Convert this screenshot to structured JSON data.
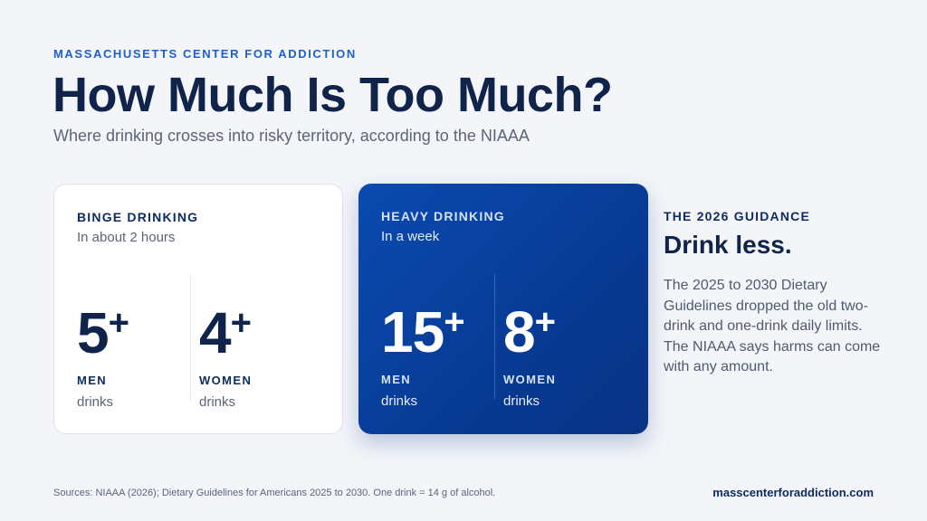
{
  "header": {
    "eyebrow": "MASSACHUSETTS CENTER FOR ADDICTION",
    "title": "How Much Is Too Much?",
    "subtitle": "Where drinking crosses into risky territory, according to the NIAAA"
  },
  "cards": [
    {
      "label": "BINGE DRINKING",
      "sub": "In about 2 hours",
      "stats": [
        {
          "number": "5",
          "suffix": "+",
          "who": "MEN",
          "unit": "drinks"
        },
        {
          "number": "4",
          "suffix": "+",
          "who": "WOMEN",
          "unit": "drinks"
        }
      ]
    },
    {
      "label": "HEAVY DRINKING",
      "sub": "In a week",
      "stats": [
        {
          "number": "15",
          "suffix": "+",
          "who": "MEN",
          "unit": "drinks"
        },
        {
          "number": "8",
          "suffix": "+",
          "who": "WOMEN",
          "unit": "drinks"
        }
      ]
    }
  ],
  "guidance": {
    "label": "THE 2026 GUIDANCE",
    "headline": "Drink less.",
    "body": "The 2025 to 2030 Dietary Guidelines dropped the old two-drink and one-drink daily limits. The NIAAA says harms can come with any amount."
  },
  "footer": {
    "sources": "Sources: NIAAA (2026); Dietary Guidelines for Americans 2025 to 2030. One drink = 14 g of alcohol.",
    "site": "masscenterforaddiction.com"
  },
  "colors": {
    "accent": "#1d5fd1",
    "navy": "#10234a",
    "card_dark": "#073a94",
    "background": "#f3f5f9"
  }
}
